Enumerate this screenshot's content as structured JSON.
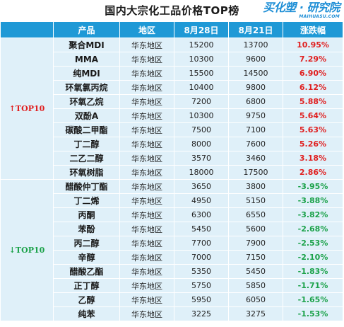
{
  "title": "国内大宗化工品价格TOP榜",
  "logo": {
    "main": "买化塑 · 研究院",
    "sub": "MAIHUASU.COM"
  },
  "headers": [
    "",
    "产品",
    "地区",
    "8月28日",
    "8月21日",
    "涨跌幅"
  ],
  "top_group": {
    "label": "TOP10",
    "arrow": "↑",
    "color": "#e02020",
    "rows": [
      {
        "product": "聚合MDI",
        "region": "华东地区",
        "current": "15200",
        "previous": "13700",
        "change": "10.95%"
      },
      {
        "product": "MMA",
        "region": "华东地区",
        "current": "10300",
        "previous": "9600",
        "change": "7.29%"
      },
      {
        "product": "纯MDI",
        "region": "华东地区",
        "current": "15500",
        "previous": "14500",
        "change": "6.90%"
      },
      {
        "product": "环氧氯丙烷",
        "region": "华东地区",
        "current": "10400",
        "previous": "9800",
        "change": "6.12%"
      },
      {
        "product": "环氧乙烷",
        "region": "华东地区",
        "current": "7200",
        "previous": "6800",
        "change": "5.88%"
      },
      {
        "product": "双酚A",
        "region": "华东地区",
        "current": "10300",
        "previous": "9750",
        "change": "5.64%"
      },
      {
        "product": "碳酸二甲酯",
        "region": "华东地区",
        "current": "7500",
        "previous": "7100",
        "change": "5.63%"
      },
      {
        "product": "丁二醇",
        "region": "华东地区",
        "current": "8000",
        "previous": "7600",
        "change": "5.26%"
      },
      {
        "product": "二乙二醇",
        "region": "华东地区",
        "current": "3570",
        "previous": "3460",
        "change": "3.18%"
      },
      {
        "product": "环氧树脂",
        "region": "华东地区",
        "current": "18000",
        "previous": "17500",
        "change": "2.86%"
      }
    ]
  },
  "bottom_group": {
    "label": "TOP10",
    "arrow": "↓",
    "color": "#1ca24a",
    "rows": [
      {
        "product": "醋酸仲丁酯",
        "region": "华东地区",
        "current": "3650",
        "previous": "3800",
        "change": "-3.95%"
      },
      {
        "product": "丁二烯",
        "region": "华东地区",
        "current": "4950",
        "previous": "5150",
        "change": "-3.88%"
      },
      {
        "product": "丙酮",
        "region": "华东地区",
        "current": "6300",
        "previous": "6550",
        "change": "-3.82%"
      },
      {
        "product": "苯酚",
        "region": "华东地区",
        "current": "5450",
        "previous": "5600",
        "change": "-2.68%"
      },
      {
        "product": "丙二醇",
        "region": "华东地区",
        "current": "7700",
        "previous": "7900",
        "change": "-2.53%"
      },
      {
        "product": "辛醇",
        "region": "华东地区",
        "current": "7000",
        "previous": "7150",
        "change": "-2.10%"
      },
      {
        "product": "醋酸乙酯",
        "region": "华东地区",
        "current": "5350",
        "previous": "5450",
        "change": "-1.83%"
      },
      {
        "product": "正丁醇",
        "region": "华东地区",
        "current": "5750",
        "previous": "5850",
        "change": "-1.71%"
      },
      {
        "product": "乙醇",
        "region": "华东地区",
        "current": "5950",
        "previous": "6050",
        "change": "-1.65%"
      },
      {
        "product": "纯苯",
        "region": "华东地区",
        "current": "3225",
        "previous": "3275",
        "change": "-1.53%"
      }
    ]
  }
}
